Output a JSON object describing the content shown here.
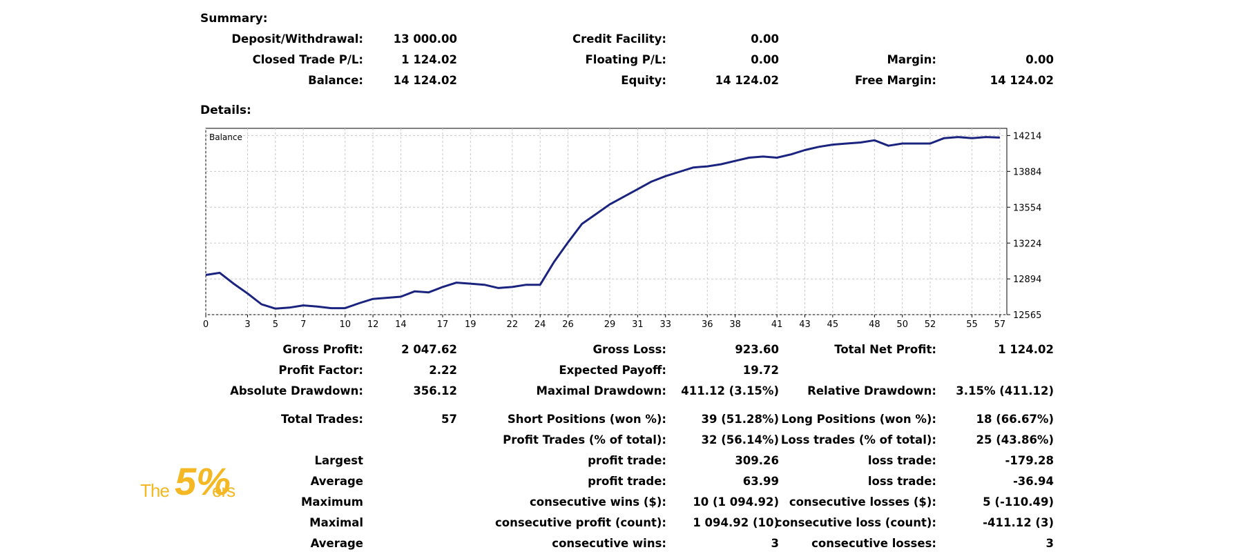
{
  "summary": {
    "heading": "Summary:",
    "deposit_label": "Deposit/Withdrawal:",
    "deposit_value": "13 000.00",
    "credit_label": "Credit Facility:",
    "credit_value": "0.00",
    "closed_label": "Closed Trade P/L:",
    "closed_value": "1 124.02",
    "floating_label": "Floating P/L:",
    "floating_value": "0.00",
    "margin_label": "Margin:",
    "margin_value": "0.00",
    "balance_label": "Balance:",
    "balance_value": "14 124.02",
    "equity_label": "Equity:",
    "equity_value": "14 124.02",
    "free_margin_label": "Free Margin:",
    "free_margin_value": "14 124.02"
  },
  "details": {
    "heading": "Details:",
    "gross_profit_label": "Gross Profit:",
    "gross_profit_value": "2 047.62",
    "gross_loss_label": "Gross Loss:",
    "gross_loss_value": "923.60",
    "total_net_label": "Total Net Profit:",
    "total_net_value": "1 124.02",
    "profit_factor_label": "Profit Factor:",
    "profit_factor_value": "2.22",
    "expected_payoff_label": "Expected Payoff:",
    "expected_payoff_value": "19.72",
    "abs_dd_label": "Absolute Drawdown:",
    "abs_dd_value": "356.12",
    "max_dd_label": "Maximal Drawdown:",
    "max_dd_value": "411.12 (3.15%)",
    "rel_dd_label": "Relative Drawdown:",
    "rel_dd_value": "3.15% (411.12)",
    "total_trades_label": "Total Trades:",
    "total_trades_value": "57",
    "short_label": "Short Positions (won %):",
    "short_value": "39 (51.28%)",
    "long_label": "Long Positions (won %):",
    "long_value": "18 (66.67%)",
    "profit_trades_label": "Profit Trades (% of total):",
    "profit_trades_value": "32 (56.14%)",
    "loss_trades_label": "Loss trades (% of total):",
    "loss_trades_value": "25 (43.86%)",
    "largest_label": "Largest",
    "largest_profit_label": "profit trade:",
    "largest_profit_value": "309.26",
    "largest_loss_label": "loss trade:",
    "largest_loss_value": "-179.28",
    "average_label": "Average",
    "average_profit_label": "profit trade:",
    "average_profit_value": "63.99",
    "average_loss_label": "loss trade:",
    "average_loss_value": "-36.94",
    "maximum_label": "Maximum",
    "max_cons_wins_label": "consecutive wins ($):",
    "max_cons_wins_value": "10 (1 094.92)",
    "max_cons_losses_label": "consecutive losses ($):",
    "max_cons_losses_value": "5 (-110.49)",
    "maximal_label": "Maximal",
    "maximal_cons_profit_label": "consecutive profit (count):",
    "maximal_cons_profit_value": "1 094.92 (10)",
    "maximal_cons_loss_label": "consecutive loss (count):",
    "maximal_cons_loss_value": "-411.12 (3)",
    "average2_label": "Average",
    "avg_cons_wins_label": "consecutive wins:",
    "avg_cons_wins_value": "3",
    "avg_cons_losses_label": "consecutive losses:",
    "avg_cons_losses_value": "3"
  },
  "logo": {
    "the": "The",
    "five": "5%",
    "ers": "ers"
  },
  "colors": {
    "line": "#1a237e",
    "grid": "#c8c8c8",
    "logo": "#f3b824"
  },
  "chart_data": {
    "type": "line",
    "title": "Balance",
    "series": [
      {
        "name": "Balance",
        "x": [
          0,
          1,
          2,
          3,
          4,
          5,
          6,
          7,
          8,
          9,
          10,
          11,
          12,
          13,
          14,
          15,
          16,
          17,
          18,
          19,
          20,
          21,
          22,
          23,
          24,
          25,
          26,
          27,
          28,
          29,
          30,
          31,
          32,
          33,
          34,
          35,
          36,
          37,
          38,
          39,
          40,
          41,
          42,
          43,
          44,
          45,
          46,
          47,
          48,
          49,
          50,
          51,
          52,
          53,
          54,
          55,
          56,
          57
        ],
        "y": [
          12930,
          12950,
          12850,
          12760,
          12660,
          12620,
          12630,
          12650,
          12640,
          12625,
          12625,
          12670,
          12710,
          12720,
          12730,
          12780,
          12770,
          12820,
          12860,
          12850,
          12840,
          12810,
          12820,
          12840,
          12840,
          13050,
          13230,
          13400,
          13490,
          13580,
          13650,
          13720,
          13790,
          13840,
          13880,
          13920,
          13930,
          13950,
          13980,
          14010,
          14020,
          14010,
          14040,
          14080,
          14110,
          14130,
          14140,
          14150,
          14170,
          14120,
          14140,
          14140,
          14140,
          14190,
          14200,
          14190,
          14200,
          14195
        ]
      }
    ],
    "xticks": [
      "0",
      "3",
      "5",
      "7",
      "10",
      "12",
      "14",
      "17",
      "19",
      "22",
      "24",
      "26",
      "29",
      "31",
      "33",
      "36",
      "38",
      "41",
      "43",
      "45",
      "48",
      "50",
      "52",
      "55",
      "57"
    ],
    "yticks": [
      "12565",
      "12894",
      "13224",
      "13554",
      "13884",
      "14214"
    ],
    "ylim": [
      12565,
      14280
    ],
    "grid": true
  }
}
